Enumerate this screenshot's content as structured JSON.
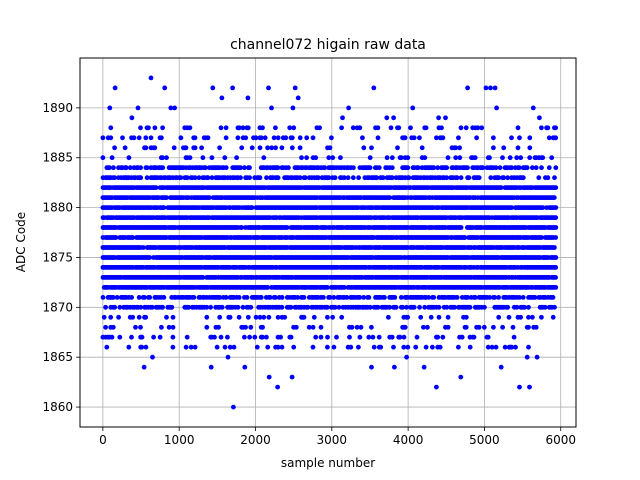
{
  "chart_data": {
    "type": "scatter",
    "title": "channel072 higain raw data",
    "xlabel": "sample number",
    "ylabel": "ADC Code",
    "xlim": [
      -300,
      6200
    ],
    "ylim": [
      1858,
      1895
    ],
    "xticks": [
      0,
      1000,
      2000,
      3000,
      4000,
      5000,
      6000
    ],
    "yticks": [
      1860,
      1865,
      1870,
      1875,
      1880,
      1885,
      1890
    ],
    "grid": true,
    "marker_color": "#0000ff",
    "sample_count": 5950,
    "value_levels": {
      "dense_band": [
        1872,
        1873,
        1874,
        1875,
        1876,
        1877,
        1878,
        1879,
        1880,
        1881,
        1882
      ],
      "common": [
        1870,
        1871,
        1883,
        1884
      ],
      "sparse": [
        1866,
        1867,
        1868,
        1869,
        1885,
        1886,
        1887,
        1888
      ]
    },
    "outliers": [
      {
        "x": 630,
        "y": 1893
      },
      {
        "x": 160,
        "y": 1892
      },
      {
        "x": 810,
        "y": 1892
      },
      {
        "x": 1440,
        "y": 1892
      },
      {
        "x": 1700,
        "y": 1892
      },
      {
        "x": 2170,
        "y": 1892
      },
      {
        "x": 2520,
        "y": 1892
      },
      {
        "x": 3550,
        "y": 1892
      },
      {
        "x": 4780,
        "y": 1892
      },
      {
        "x": 5020,
        "y": 1892
      },
      {
        "x": 5080,
        "y": 1892
      },
      {
        "x": 5140,
        "y": 1892
      },
      {
        "x": 1560,
        "y": 1891
      },
      {
        "x": 1900,
        "y": 1891
      },
      {
        "x": 2560,
        "y": 1891
      },
      {
        "x": 90,
        "y": 1890
      },
      {
        "x": 460,
        "y": 1890
      },
      {
        "x": 890,
        "y": 1890
      },
      {
        "x": 940,
        "y": 1890
      },
      {
        "x": 2210,
        "y": 1890
      },
      {
        "x": 2490,
        "y": 1890
      },
      {
        "x": 3220,
        "y": 1890
      },
      {
        "x": 4060,
        "y": 1890
      },
      {
        "x": 5160,
        "y": 1890
      },
      {
        "x": 5640,
        "y": 1890
      },
      {
        "x": 380,
        "y": 1889
      },
      {
        "x": 3140,
        "y": 1889
      },
      {
        "x": 3720,
        "y": 1889
      },
      {
        "x": 3810,
        "y": 1889
      },
      {
        "x": 4400,
        "y": 1889
      },
      {
        "x": 4490,
        "y": 1889
      },
      {
        "x": 5720,
        "y": 1889
      },
      {
        "x": 1860,
        "y": 1864
      },
      {
        "x": 540,
        "y": 1864
      },
      {
        "x": 1420,
        "y": 1864
      },
      {
        "x": 3520,
        "y": 1864
      },
      {
        "x": 3820,
        "y": 1864
      },
      {
        "x": 4210,
        "y": 1864
      },
      {
        "x": 5220,
        "y": 1864
      },
      {
        "x": 3980,
        "y": 1865
      },
      {
        "x": 650,
        "y": 1865
      },
      {
        "x": 1640,
        "y": 1865
      },
      {
        "x": 5560,
        "y": 1865
      },
      {
        "x": 5690,
        "y": 1865
      },
      {
        "x": 2180,
        "y": 1863
      },
      {
        "x": 2480,
        "y": 1863
      },
      {
        "x": 4690,
        "y": 1863
      },
      {
        "x": 2290,
        "y": 1862
      },
      {
        "x": 4370,
        "y": 1862
      },
      {
        "x": 5460,
        "y": 1862
      },
      {
        "x": 5590,
        "y": 1862
      },
      {
        "x": 1710,
        "y": 1860
      }
    ]
  }
}
